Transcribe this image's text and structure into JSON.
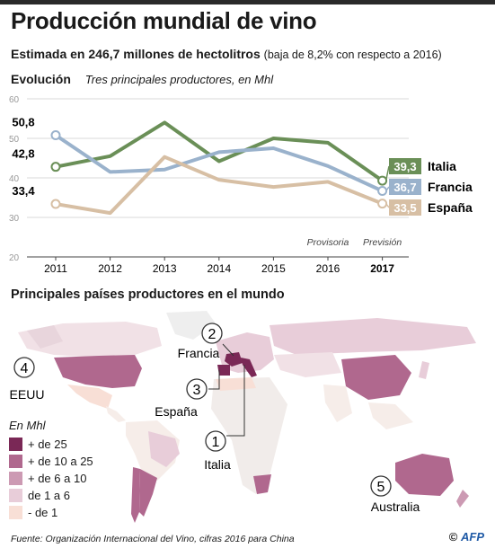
{
  "header": {
    "title": "Producción mundial de vino",
    "subtitle": "Estimada en 246,7 millones de hectolitros",
    "subtitle_note": "(baja de 8,2% con respecto a 2016)"
  },
  "evolution": {
    "heading": "Evolución",
    "subheading": "Tres principales productores, en Mhl"
  },
  "chart_data": {
    "type": "line",
    "x": [
      "2011",
      "2012",
      "2013",
      "2014",
      "2015",
      "2016",
      "2017"
    ],
    "ylim": [
      20,
      60
    ],
    "yticks": [
      20,
      30,
      40,
      50,
      60
    ],
    "grid": true,
    "annotations": {
      "2016": "Provisoria",
      "2017": "Previsión"
    },
    "series": [
      {
        "name": "Italia",
        "color": "#6a8f57",
        "values": [
          42.8,
          45.5,
          54.0,
          44.2,
          50.0,
          48.9,
          39.3
        ],
        "start_label": "42,8",
        "end_label": "39,3"
      },
      {
        "name": "Francia",
        "color": "#9ab2cc",
        "values": [
          50.8,
          41.5,
          42.1,
          46.5,
          47.5,
          43.0,
          36.7
        ],
        "start_label": "50,8",
        "end_label": "36,7"
      },
      {
        "name": "España",
        "color": "#d7bfa4",
        "values": [
          33.4,
          31.1,
          45.3,
          39.5,
          37.7,
          39.0,
          33.5
        ],
        "start_label": "33,4",
        "end_label": "33,5"
      }
    ]
  },
  "map": {
    "title": "Principales países productores en el mundo",
    "legend_title": "En Mhl",
    "legend": [
      {
        "label": "+ de 25",
        "color": "#7a2856"
      },
      {
        "label": "+ de 10 a 25",
        "color": "#b0688e"
      },
      {
        "label": "+ de 6 a 10",
        "color": "#cc9ab3"
      },
      {
        "label": "de 1 a 6",
        "color": "#e8cdd9"
      },
      {
        "label": "- de 1",
        "color": "#f8dfd6"
      }
    ],
    "markers": [
      {
        "rank": "1",
        "country": "Italia"
      },
      {
        "rank": "2",
        "country": "Francia"
      },
      {
        "rank": "3",
        "country": "España"
      },
      {
        "rank": "4",
        "country": "EEUU"
      },
      {
        "rank": "5",
        "country": "Australia"
      }
    ]
  },
  "footer": {
    "source": "Fuente: Organización Internacional del Vino, cifras 2016 para China",
    "credit_symbol": "©",
    "credit_logo": "AFP"
  }
}
